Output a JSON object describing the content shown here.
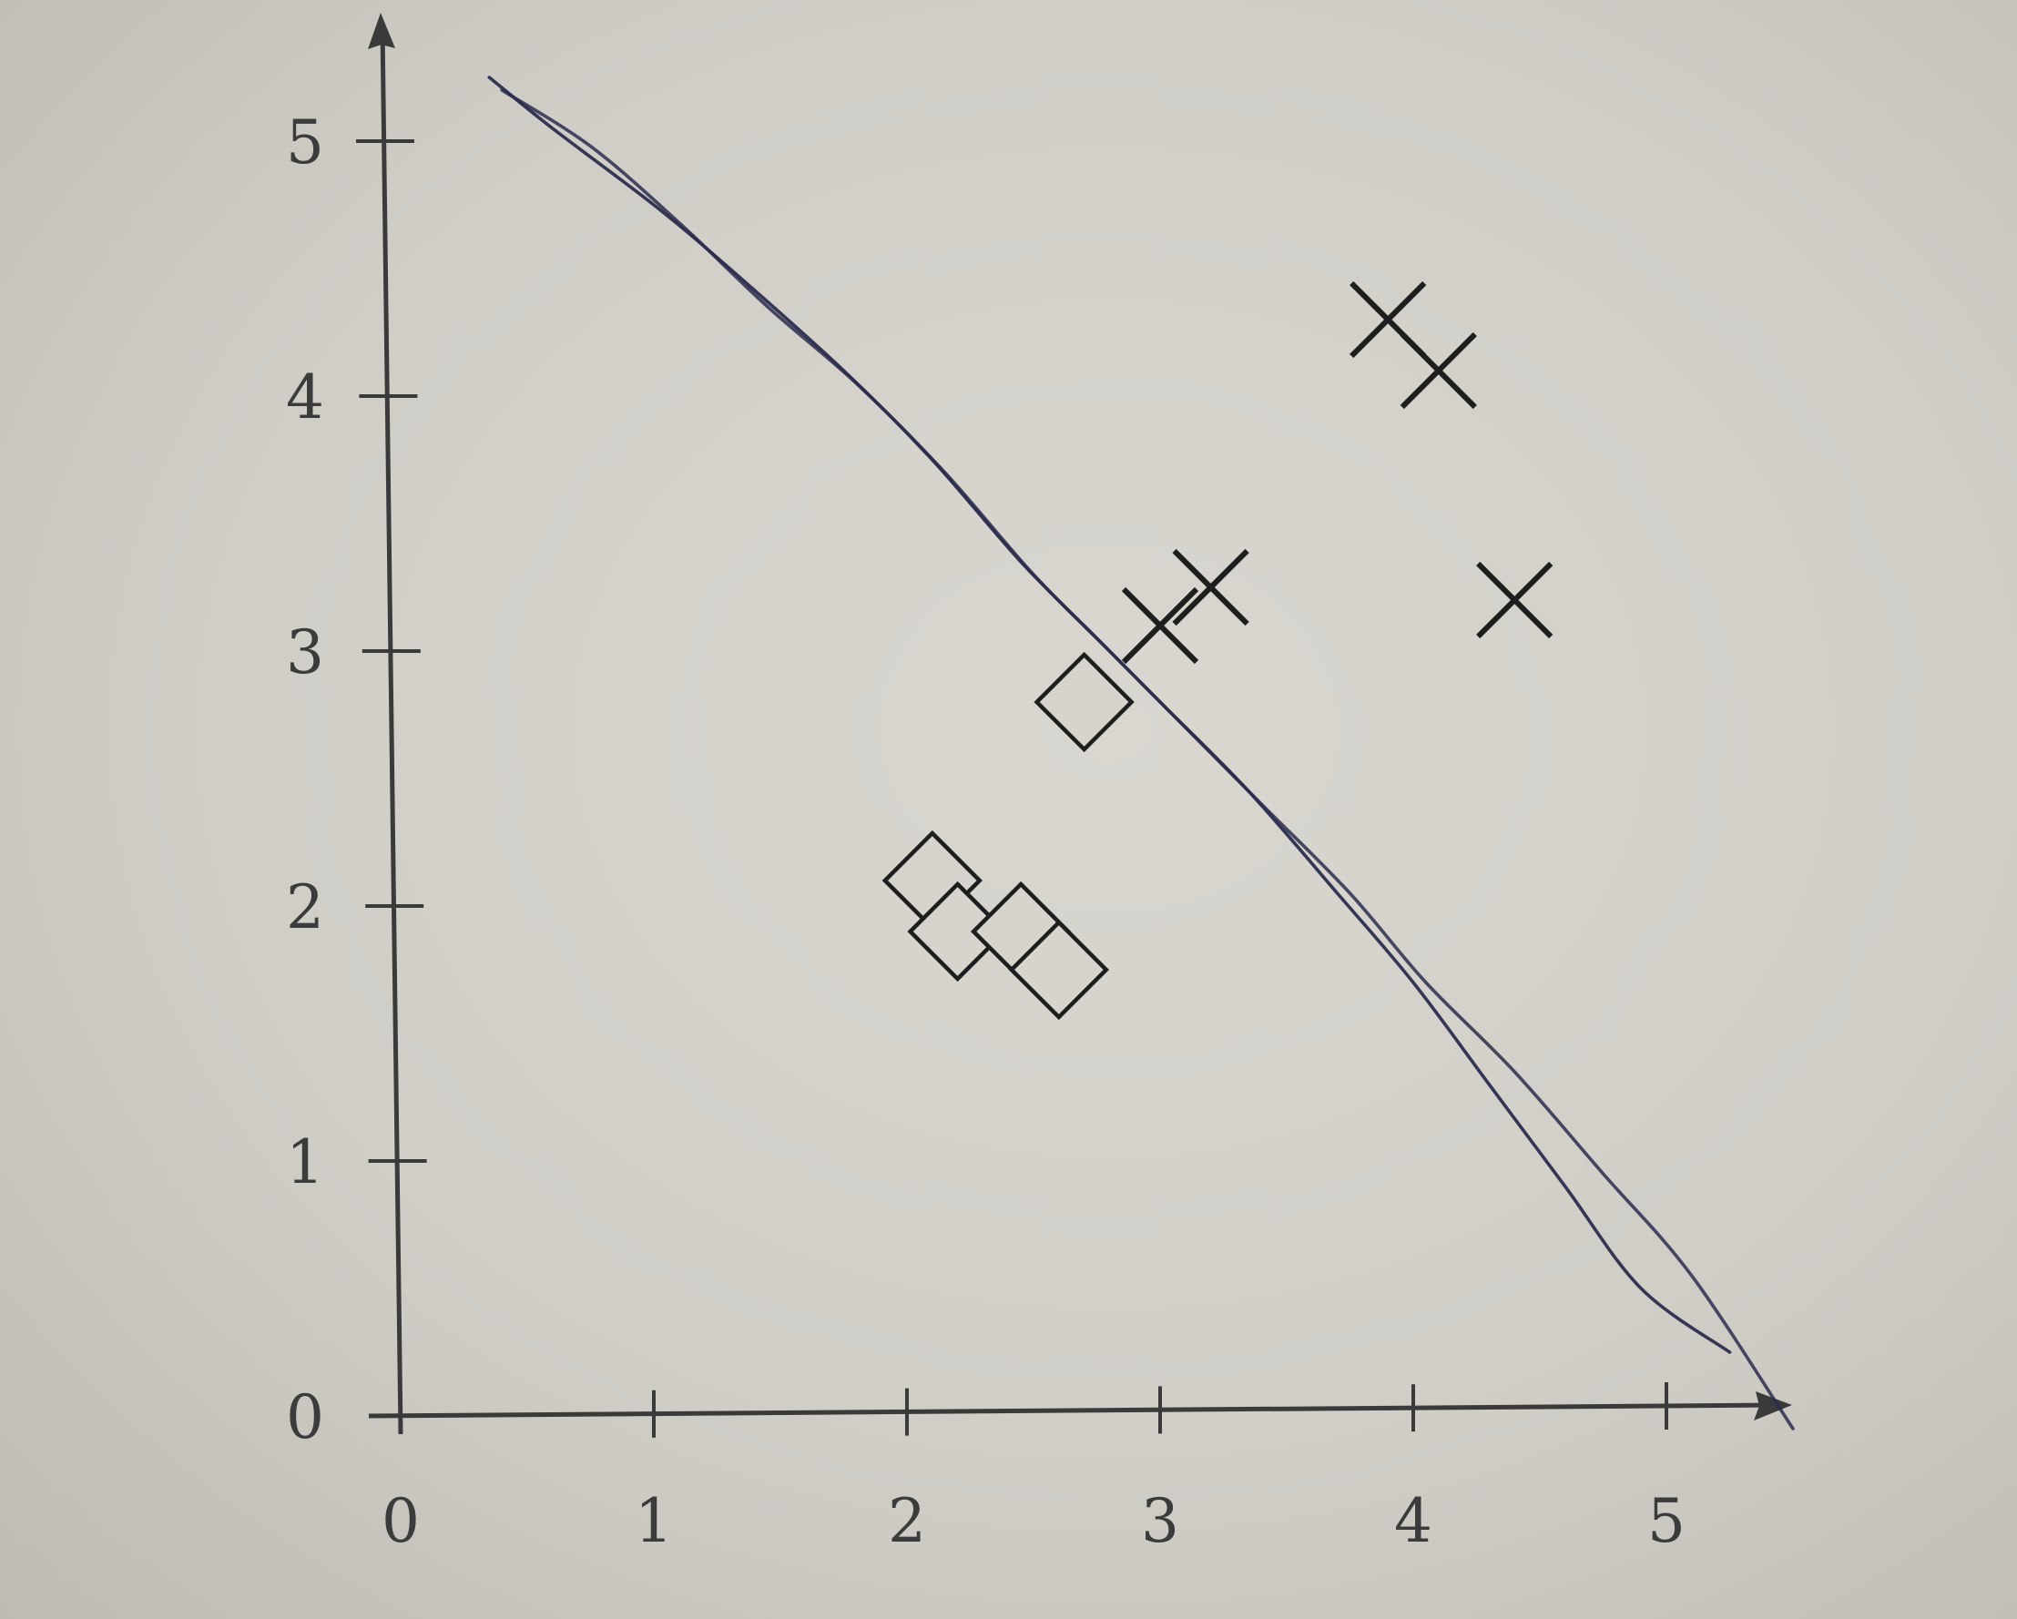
{
  "chart_data": {
    "type": "scatter",
    "title": "",
    "xlabel": "",
    "ylabel": "",
    "xlim": [
      0,
      5.5
    ],
    "ylim": [
      0,
      5.5
    ],
    "grid": false,
    "x_ticks": [
      "0",
      "1",
      "2",
      "3",
      "4",
      "5"
    ],
    "y_ticks": [
      "0",
      "1",
      "2",
      "3",
      "4",
      "5"
    ],
    "series": [
      {
        "marker": "cross",
        "points": [
          {
            "x": 3.0,
            "y": 3.1
          },
          {
            "x": 3.2,
            "y": 3.25
          },
          {
            "x": 3.9,
            "y": 4.3
          },
          {
            "x": 4.1,
            "y": 4.1
          },
          {
            "x": 4.4,
            "y": 3.2
          }
        ]
      },
      {
        "marker": "diamond",
        "points": [
          {
            "x": 2.7,
            "y": 2.8
          },
          {
            "x": 2.1,
            "y": 2.1
          },
          {
            "x": 2.2,
            "y": 1.9
          },
          {
            "x": 2.45,
            "y": 1.9
          },
          {
            "x": 2.6,
            "y": 1.75
          }
        ]
      }
    ],
    "hand_drawn_boundary": {
      "color": "#2b2d4e",
      "strokes": [
        [
          [
            0.35,
            5.25
          ],
          [
            0.6,
            5.05
          ],
          [
            1.0,
            4.75
          ],
          [
            1.3,
            4.5
          ],
          [
            1.75,
            4.1
          ],
          [
            2.1,
            3.75
          ],
          [
            2.45,
            3.35
          ],
          [
            2.75,
            3.05
          ],
          [
            3.0,
            2.8
          ],
          [
            3.35,
            2.45
          ],
          [
            3.7,
            2.05
          ],
          [
            4.0,
            1.7
          ],
          [
            4.3,
            1.3
          ],
          [
            4.6,
            0.9
          ],
          [
            4.9,
            0.5
          ],
          [
            5.25,
            0.25
          ]
        ],
        [
          [
            0.4,
            5.2
          ],
          [
            0.75,
            4.98
          ],
          [
            1.1,
            4.68
          ],
          [
            1.45,
            4.35
          ],
          [
            1.8,
            4.05
          ],
          [
            2.15,
            3.7
          ],
          [
            2.5,
            3.3
          ],
          [
            2.8,
            3.0
          ],
          [
            3.05,
            2.75
          ],
          [
            3.4,
            2.4
          ],
          [
            3.75,
            2.05
          ],
          [
            4.05,
            1.7
          ],
          [
            4.4,
            1.35
          ],
          [
            4.75,
            0.95
          ],
          [
            5.1,
            0.55
          ],
          [
            5.5,
            -0.05
          ]
        ]
      ]
    }
  }
}
